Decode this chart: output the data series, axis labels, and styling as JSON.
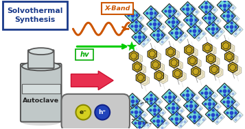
{
  "bg_color": "#ffffff",
  "title_box_text": "Solvothermal\nSynthesis",
  "title_box_color": "#1a3a8a",
  "title_box_bg": "#ffffff",
  "autoclave_color": "#b8c0c0",
  "autoclave_text": "Autoclave",
  "arrow_big_color": "#e83050",
  "xband_label": "X-Band",
  "xband_color": "#cc5500",
  "hv_label": "hv",
  "hv_color": "#00aa00",
  "wave_color": "#cc5500",
  "green_ray_color": "#00cc00",
  "crystal_teal": "#70d8d8",
  "crystal_blue": "#2244cc",
  "crystal_black": "#111111",
  "organic_gold": "#c8a820",
  "organic_gray": "#888888",
  "eh_box_bg": "#cccccc",
  "e_color": "#d4cc20",
  "h_color": "#2244cc",
  "e_text": "e⁻",
  "h_text": "h⁺",
  "shadow_color": "#aaaaaa"
}
